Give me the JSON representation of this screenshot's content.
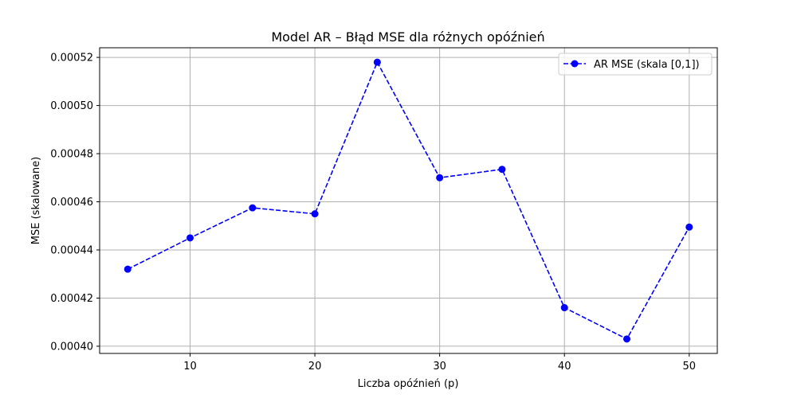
{
  "chart_data": {
    "type": "line",
    "title": "Model AR – Błąd MSE dla różnych opóźnień",
    "xlabel": "Liczba opóźnień (p)",
    "ylabel": "MSE (skalowane)",
    "xlim": [
      2.75,
      52.25
    ],
    "ylim": [
      0.000397,
      0.000524
    ],
    "xticks": [
      10,
      20,
      30,
      40,
      50
    ],
    "yticks": [
      0.0004,
      0.00042,
      0.00044,
      0.00046,
      0.00048,
      0.0005,
      0.00052
    ],
    "ytick_labels": [
      "0.00040",
      "0.00042",
      "0.00044",
      "0.00046",
      "0.00048",
      "0.00050",
      "0.00052"
    ],
    "grid": true,
    "legend_position": "top-right",
    "series": [
      {
        "name": "AR MSE (skala [0,1])",
        "color": "#0000ff",
        "line_style": "dashed",
        "marker": "circle",
        "x": [
          5,
          10,
          15,
          20,
          25,
          30,
          35,
          40,
          45,
          50
        ],
        "y": [
          0.000432,
          0.000445,
          0.0004575,
          0.000455,
          0.000518,
          0.00047,
          0.0004735,
          0.000416,
          0.000403,
          0.0004495
        ]
      }
    ]
  }
}
